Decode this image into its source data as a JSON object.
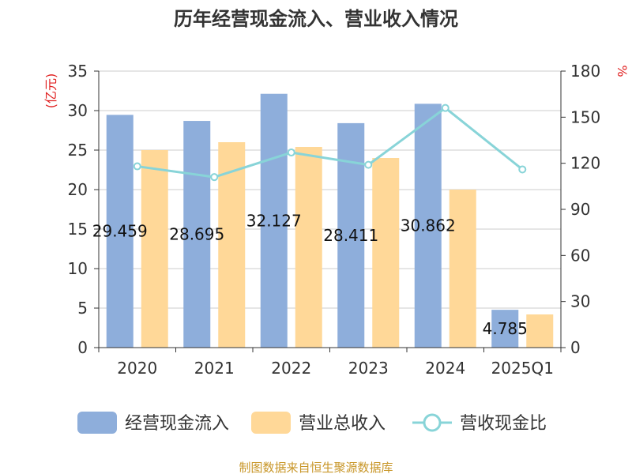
{
  "colors": {
    "cash_inflow": "#8eaedb",
    "revenue": "#ffd898",
    "ratio": "#88d4d8",
    "grid": "#cccccc",
    "axis": "#333333",
    "unit": "#e02020",
    "source": "#c89628"
  },
  "source_text": "制图数据来自恒生聚源数据库",
  "chart_data": {
    "type": "bar",
    "title": "历年经营现金流入、营业收入情况",
    "categories": [
      "2020",
      "2021",
      "2022",
      "2023",
      "2024",
      "2025Q1"
    ],
    "y_left": {
      "unit": "(亿元)",
      "ylim": [
        0,
        35
      ],
      "ticks": [
        0,
        5,
        10,
        15,
        20,
        25,
        30,
        35
      ]
    },
    "y_right": {
      "unit": "%",
      "ylim": [
        0,
        180
      ],
      "ticks": [
        0,
        30,
        60,
        90,
        120,
        150,
        180
      ]
    },
    "grid": true,
    "legend_position": "bottom",
    "series": [
      {
        "name": "经营现金流入",
        "type": "bar",
        "axis": "left",
        "color": "#8eaedb",
        "values": [
          29.459,
          28.695,
          32.127,
          28.411,
          30.862,
          4.785
        ],
        "labels": [
          "29.459",
          "28.695",
          "32.127",
          "28.411",
          "30.862",
          "4.785"
        ]
      },
      {
        "name": "营业总收入",
        "type": "bar",
        "axis": "left",
        "color": "#ffd898",
        "values": [
          25.0,
          26.0,
          25.4,
          24.0,
          20.0,
          4.2
        ]
      },
      {
        "name": "营收现金比",
        "type": "line",
        "axis": "right",
        "color": "#88d4d8",
        "values": [
          118,
          111,
          127,
          119,
          156,
          116
        ]
      }
    ]
  }
}
